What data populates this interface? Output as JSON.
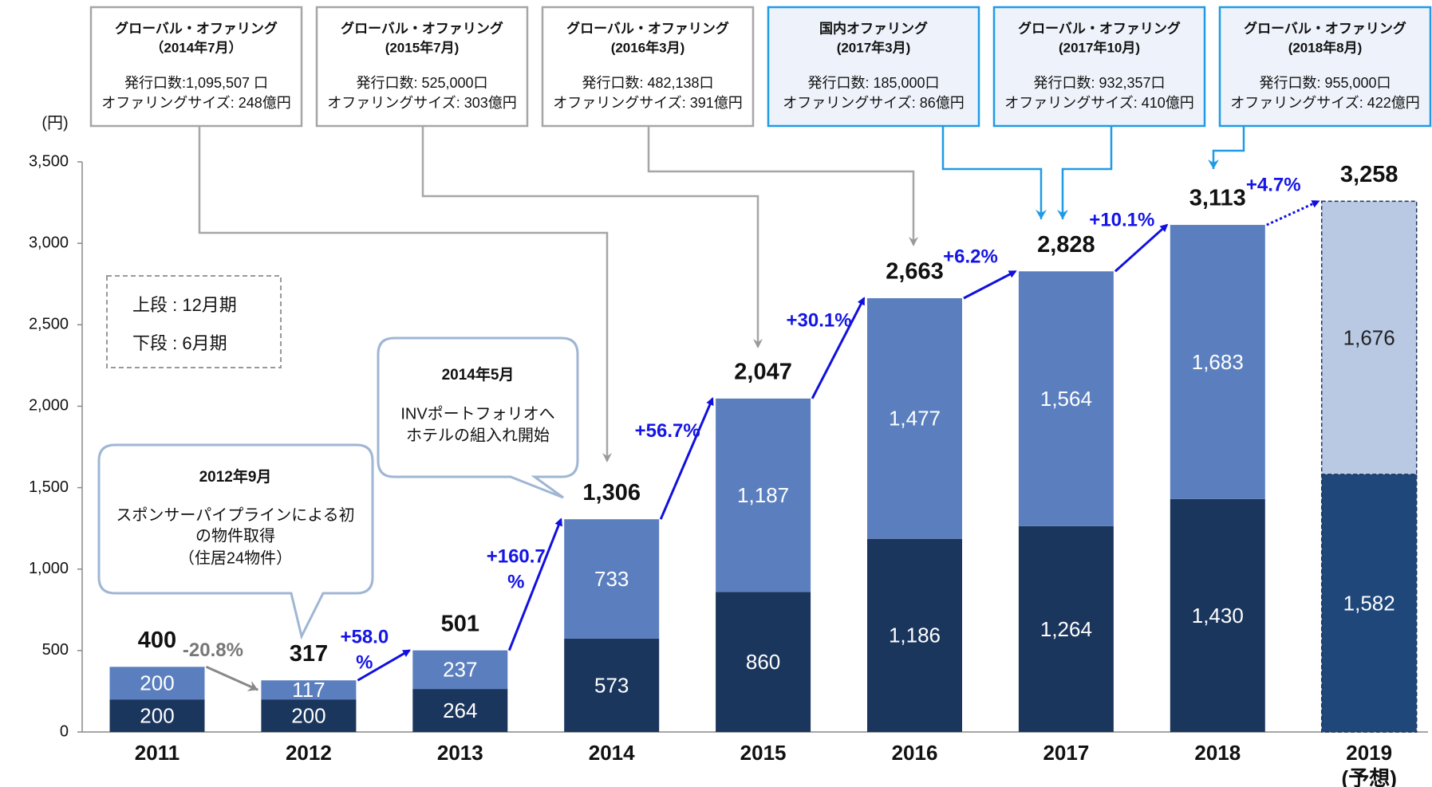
{
  "chart_data": {
    "type": "stacked_bar",
    "y_unit": "(円)",
    "categories": [
      "2011",
      "2012",
      "2013",
      "2014",
      "2015",
      "2016",
      "2017",
      "2018",
      "2019\n(予想)"
    ],
    "series": [
      {
        "name": "下段 : 6月期",
        "color": "#1b365d",
        "forecast_color": "#1f477a",
        "values": [
          200,
          200,
          264,
          573,
          860,
          1186,
          1264,
          1430,
          1582
        ],
        "value_labels": [
          "200",
          "200",
          "264",
          "573",
          "860",
          "1,186",
          "1,264",
          "1,430",
          "1,582"
        ]
      },
      {
        "name": "上段 : 12月期",
        "color": "#5b7fbe",
        "forecast_color": "#b9c9e4",
        "values": [
          200,
          117,
          237,
          733,
          1187,
          1477,
          1564,
          1683,
          1676
        ],
        "value_labels": [
          "200",
          "117",
          "237",
          "733",
          "1,187",
          "1,477",
          "1,564",
          "1,683",
          "1,676"
        ]
      }
    ],
    "forecast_index": 8,
    "totals": [
      400,
      317,
      501,
      1306,
      2047,
      2663,
      2828,
      3113,
      3258
    ],
    "total_labels": [
      "400",
      "317",
      "501",
      "1,306",
      "2,047",
      "2,663",
      "2,828",
      "3,113",
      "3,258"
    ],
    "growth_labels": [
      "-20.8%",
      "+58.0\n%",
      "+160.7\n%",
      "+56.7%",
      "+30.1%",
      "+6.2%",
      "+10.1%",
      "+4.7%"
    ],
    "ylim": [
      0,
      3500
    ],
    "yticks": [
      0,
      500,
      {
        "value": 1000,
        "label": "1,000"
      },
      {
        "value": 1500,
        "label": "1,500"
      },
      {
        "value": 2000,
        "label": "2,000"
      },
      {
        "value": 2500,
        "label": "2,500"
      },
      {
        "value": 3000,
        "label": "3,000"
      },
      {
        "value": 3500,
        "label": "3,500"
      }
    ],
    "offerings": [
      {
        "title": "グローバル・オファリング",
        "date": "（2014年7月）",
        "units": "発行口数:1,095,507 口",
        "size": "オファリングサイズ: 248億円",
        "target": 3
      },
      {
        "title": "グローバル・オファリング",
        "date": "(2015年7月)",
        "units": "発行口数: 525,000口",
        "size": "オファリングサイズ: 303億円",
        "target": 4
      },
      {
        "title": "グローバル・オファリング",
        "date": "(2016年3月)",
        "units": "発行口数: 482,138口",
        "size": "オファリングサイズ:  391億円",
        "target": 5
      },
      {
        "title": "国内オファリング",
        "date": "(2017年3月)",
        "units": "発行口数: 185,000口",
        "size": "オファリングサイズ: 86億円",
        "target": 6
      },
      {
        "title": "グローバル・オファリング",
        "date": "(2017年10月)",
        "units": "発行口数: 932,357口",
        "size": "オファリングサイズ: 410億円",
        "target": 6
      },
      {
        "title": "グローバル・オファリング",
        "date": "(2018年8月)",
        "units": "発行口数: 955,000口",
        "size": "オファリングサイズ: 422億円",
        "target": 7
      }
    ],
    "callouts": [
      {
        "title": "2012年9月",
        "lines": [
          "スポンサーパイプラインによる初",
          "の物件取得",
          "（住居24物件）"
        ]
      },
      {
        "title": "2014年5月",
        "lines": [
          "INVポートフォリオへ",
          "ホテルの組入れ開始"
        ]
      }
    ]
  }
}
